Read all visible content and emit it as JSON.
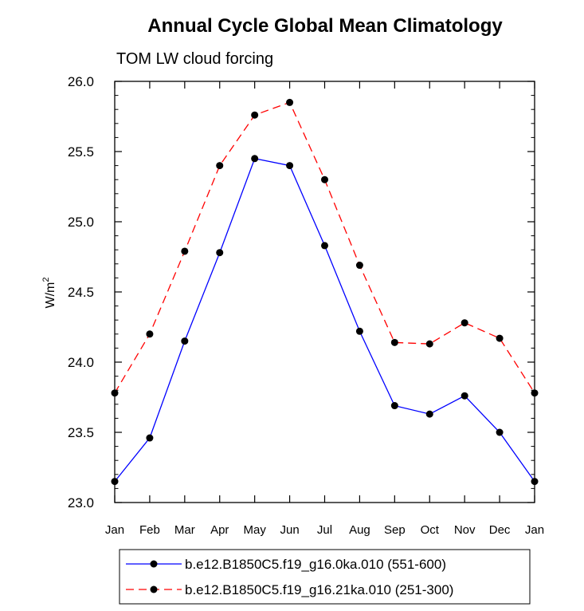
{
  "chart_data": {
    "type": "line",
    "title": "Annual Cycle Global Mean Climatology",
    "subtitle": "TOM LW cloud forcing",
    "xlabel": "",
    "ylabel": "W/m",
    "ylabel_superscript": "2",
    "categories": [
      "Jan",
      "Feb",
      "Mar",
      "Apr",
      "May",
      "Jun",
      "Jul",
      "Aug",
      "Sep",
      "Oct",
      "Nov",
      "Dec",
      "Jan"
    ],
    "ylim": [
      23.0,
      26.0
    ],
    "yticks": [
      "23.0",
      "23.5",
      "24.0",
      "24.5",
      "25.0",
      "25.5",
      "26.0"
    ],
    "grid": false,
    "legend_position": "bottom",
    "series": [
      {
        "name": "b.e12.B1850C5.f19_g16.0ka.010 (551-600)",
        "color": "#0000ff",
        "dash": "solid",
        "values": [
          23.15,
          23.46,
          24.15,
          24.78,
          25.45,
          25.4,
          24.83,
          24.22,
          23.69,
          23.63,
          23.76,
          23.5,
          23.15
        ]
      },
      {
        "name": "b.e12.B1850C5.f19_g16.21ka.010 (251-300)",
        "color": "#ff0000",
        "dash": "dashed",
        "values": [
          23.78,
          24.2,
          24.79,
          25.4,
          25.76,
          25.85,
          25.3,
          24.69,
          24.14,
          24.13,
          24.28,
          24.17,
          23.78
        ]
      }
    ]
  }
}
